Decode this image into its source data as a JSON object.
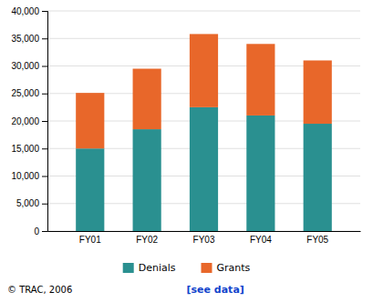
{
  "chart_data": {
    "type": "bar",
    "stacked": true,
    "categories": [
      "FY01",
      "FY02",
      "FY03",
      "FY04",
      "FY05"
    ],
    "series": [
      {
        "name": "Denials",
        "color": "#2a9090",
        "values": [
          15000,
          18500,
          22500,
          21000,
          19500
        ]
      },
      {
        "name": "Grants",
        "color": "#e8672a",
        "values": [
          10100,
          11000,
          13300,
          13000,
          11500
        ]
      }
    ],
    "ylim": [
      0,
      40000
    ],
    "yticks": [
      0,
      {
        "value": 5000,
        "label": "5,000"
      },
      {
        "value": 10000,
        "label": "10,000"
      },
      {
        "value": 15000,
        "label": "15,000"
      },
      {
        "value": 20000,
        "label": "20,000"
      },
      {
        "value": 25000,
        "label": "25,000"
      },
      {
        "value": 30000,
        "label": "30,000"
      },
      {
        "value": 35000,
        "label": "35,000"
      },
      {
        "value": 40000,
        "label": "40,000"
      }
    ],
    "grid": true,
    "legend": "bottom",
    "annotations": [
      {
        "text": "© TRAC, 2006"
      },
      {
        "text": "[see data]",
        "color": "#1144cc"
      }
    ]
  }
}
